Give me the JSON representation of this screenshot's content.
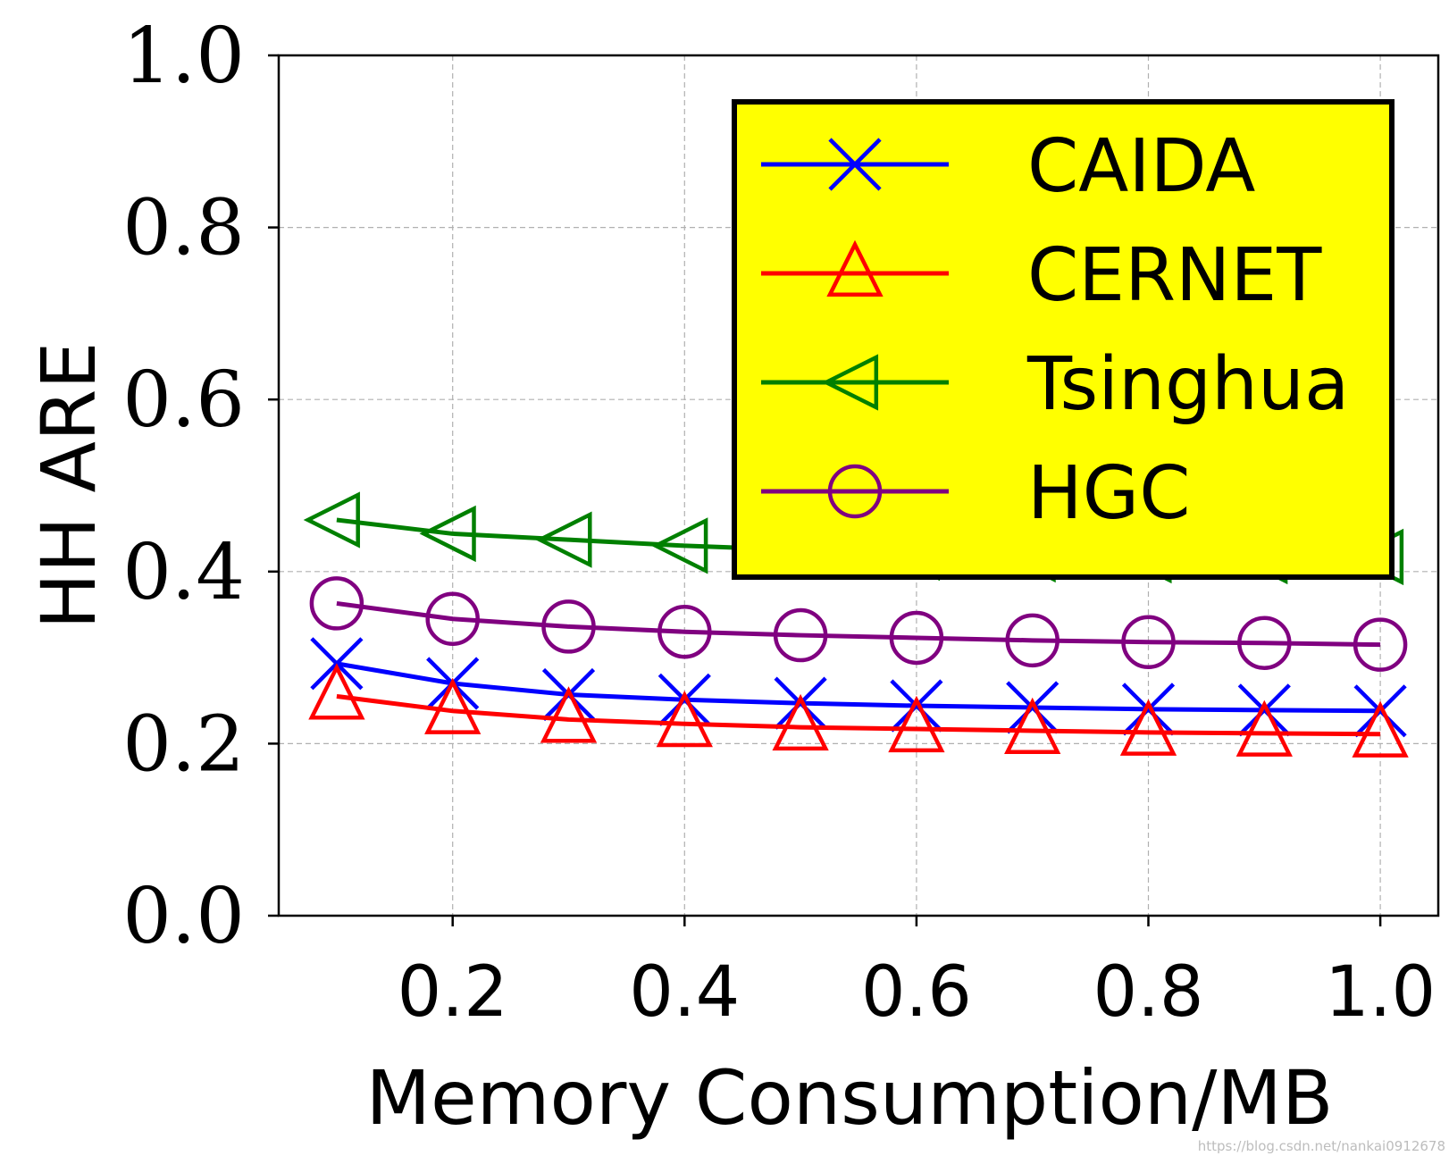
{
  "chart_data": {
    "type": "line",
    "title": "",
    "xlabel": "Memory Consumption/MB",
    "ylabel": "HH ARE",
    "xlim": [
      0.05,
      1.05
    ],
    "ylim": [
      0.0,
      1.0
    ],
    "xticks": [
      "0.2",
      "0.4",
      "0.6",
      "0.8",
      "1.0"
    ],
    "xtick_values": [
      0.2,
      0.4,
      0.6,
      0.8,
      1.0
    ],
    "yticks": [
      "0.0",
      "0.2",
      "0.4",
      "0.6",
      "0.8",
      "1.0"
    ],
    "ytick_values": [
      0.0,
      0.2,
      0.4,
      0.6,
      0.8,
      1.0
    ],
    "grid": true,
    "legend_position": "top-right",
    "legend_background": "#ffff00",
    "x": [
      0.1,
      0.2,
      0.3,
      0.4,
      0.5,
      0.6,
      0.7,
      0.8,
      0.9,
      1.0
    ],
    "series": [
      {
        "name": "CAIDA",
        "color": "#0000ff",
        "marker": "x",
        "values": [
          0.293,
          0.27,
          0.257,
          0.251,
          0.247,
          0.244,
          0.242,
          0.24,
          0.239,
          0.238
        ]
      },
      {
        "name": "CERNET",
        "color": "#ff0000",
        "marker": "triangle-up",
        "values": [
          0.255,
          0.238,
          0.228,
          0.223,
          0.219,
          0.217,
          0.215,
          0.213,
          0.212,
          0.211
        ]
      },
      {
        "name": "Tsinghua",
        "color": "#008000",
        "marker": "triangle-left",
        "values": [
          0.46,
          0.444,
          0.437,
          0.43,
          0.425,
          0.422,
          0.42,
          0.419,
          0.418,
          0.417
        ]
      },
      {
        "name": "HGC",
        "color": "#800080",
        "marker": "circle",
        "values": [
          0.363,
          0.345,
          0.336,
          0.33,
          0.326,
          0.323,
          0.32,
          0.318,
          0.317,
          0.315
        ]
      }
    ]
  },
  "watermark": "https://blog.csdn.net/nankai0912678"
}
